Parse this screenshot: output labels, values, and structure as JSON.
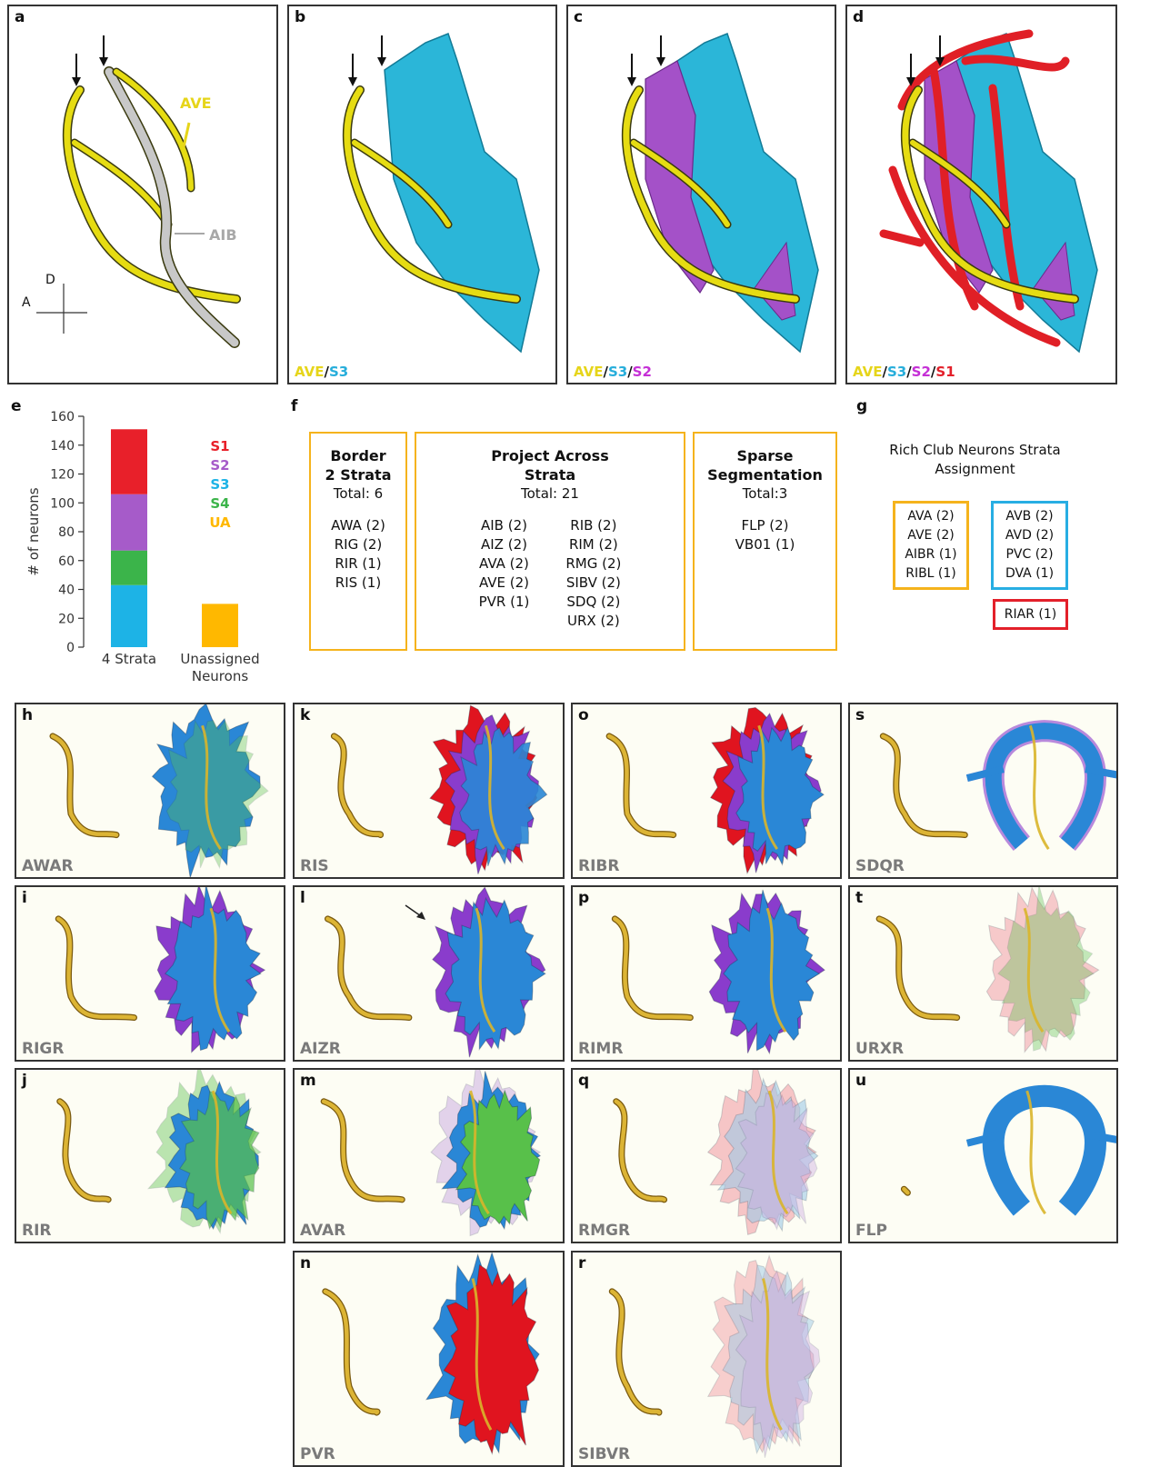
{
  "panel_a": {
    "letter": "a",
    "labels": {
      "ave": "AVE",
      "aib": "AIB",
      "dorsal": "D",
      "anterior": "A"
    }
  },
  "panels_bcd": [
    {
      "letter": "b",
      "caption": [
        {
          "text": "AVE",
          "color": "#e6d51a"
        },
        {
          "text": "/"
        },
        {
          "text": "S3",
          "color": "#27aedb"
        }
      ]
    },
    {
      "letter": "c",
      "caption": [
        {
          "text": "AVE",
          "color": "#e6d51a"
        },
        {
          "text": "/"
        },
        {
          "text": "S3",
          "color": "#27aedb"
        },
        {
          "text": "/"
        },
        {
          "text": "S2",
          "color": "#c52fd6"
        }
      ]
    },
    {
      "letter": "d",
      "caption": [
        {
          "text": "AVE",
          "color": "#e6d51a"
        },
        {
          "text": "/"
        },
        {
          "text": "S3",
          "color": "#27aedb"
        },
        {
          "text": "/"
        },
        {
          "text": "S2",
          "color": "#c52fd6"
        },
        {
          "text": "/"
        },
        {
          "text": "S1",
          "color": "#e3202a"
        }
      ]
    }
  ],
  "panel_e": {
    "letter": "e"
  },
  "chart_data": {
    "type": "stacked-bar",
    "ylabel": "# of neurons",
    "categories": [
      "4 Strata",
      "Unassigned Neurons"
    ],
    "series": [
      {
        "name": "S1",
        "color": "#e8202a",
        "values": [
          45,
          null
        ]
      },
      {
        "name": "S2",
        "color": "#a65bc9",
        "values": [
          39,
          null
        ]
      },
      {
        "name": "S3",
        "color": "#1db3e6",
        "values": [
          43,
          null
        ]
      },
      {
        "name": "S4",
        "color": "#3bb44a",
        "values": [
          24,
          null
        ]
      },
      {
        "name": "UA",
        "color": "#ffb800",
        "values": [
          null,
          30
        ]
      }
    ],
    "stack_order": [
      2,
      3,
      1,
      0,
      4
    ],
    "ylim": [
      0,
      160
    ],
    "yticks": [
      0,
      20,
      40,
      60,
      80,
      100,
      120,
      140,
      160
    ],
    "grid": false
  },
  "panel_f": {
    "letter": "f",
    "boxes": [
      {
        "title": [
          "Border",
          "2 Strata"
        ],
        "total": "Total: 6",
        "columns": [
          [
            "AWA (2)",
            "RIG (2)",
            "RIR (1)",
            "RIS (1)"
          ]
        ]
      },
      {
        "title": [
          "Project Across",
          "Strata"
        ],
        "total": "Total: 21",
        "columns": [
          [
            "AIB (2)",
            "AIZ (2)",
            "AVA (2)",
            "AVE (2)",
            "PVR (1)"
          ],
          [
            "RIB (2)",
            "RIM (2)",
            "RMG (2)",
            "SIBV (2)",
            "SDQ (2)",
            "URX (2)"
          ]
        ]
      },
      {
        "title": [
          "Sparse",
          "Segmentation"
        ],
        "total": "Total:3",
        "columns": [
          [
            "FLP (2)",
            "VB01 (1)"
          ]
        ]
      }
    ]
  },
  "panel_g": {
    "letter": "g",
    "title": [
      "Rich Club Neurons Strata",
      "Assignment"
    ],
    "groups": [
      {
        "color": "#f5b31c",
        "items": [
          "AVA (2)",
          "AVE (2)",
          "AIBR (1)",
          "RIBL (1)"
        ]
      },
      {
        "color": "#27aee3",
        "items": [
          "AVB (2)",
          "AVD (2)",
          "PVC (2)",
          "DVA (1)"
        ]
      },
      {
        "color": "#e3202a",
        "items": [
          "RIAR (1)"
        ]
      }
    ]
  },
  "render_panels": [
    {
      "letter": "h",
      "caption": "AWAR"
    },
    {
      "letter": "i",
      "caption": "RIGR"
    },
    {
      "letter": "j",
      "caption": "RIR"
    },
    {
      "letter": "k",
      "caption": "RIS"
    },
    {
      "letter": "l",
      "caption": "AIZR"
    },
    {
      "letter": "m",
      "caption": "AVAR"
    },
    {
      "letter": "n",
      "caption": "PVR"
    },
    {
      "letter": "o",
      "caption": "RIBR"
    },
    {
      "letter": "p",
      "caption": "RIMR"
    },
    {
      "letter": "q",
      "caption": "RMGR"
    },
    {
      "letter": "r",
      "caption": "SIBVR"
    },
    {
      "letter": "s",
      "caption": "SDQR"
    },
    {
      "letter": "t",
      "caption": "URXR"
    },
    {
      "letter": "u",
      "caption": "FLP"
    }
  ]
}
